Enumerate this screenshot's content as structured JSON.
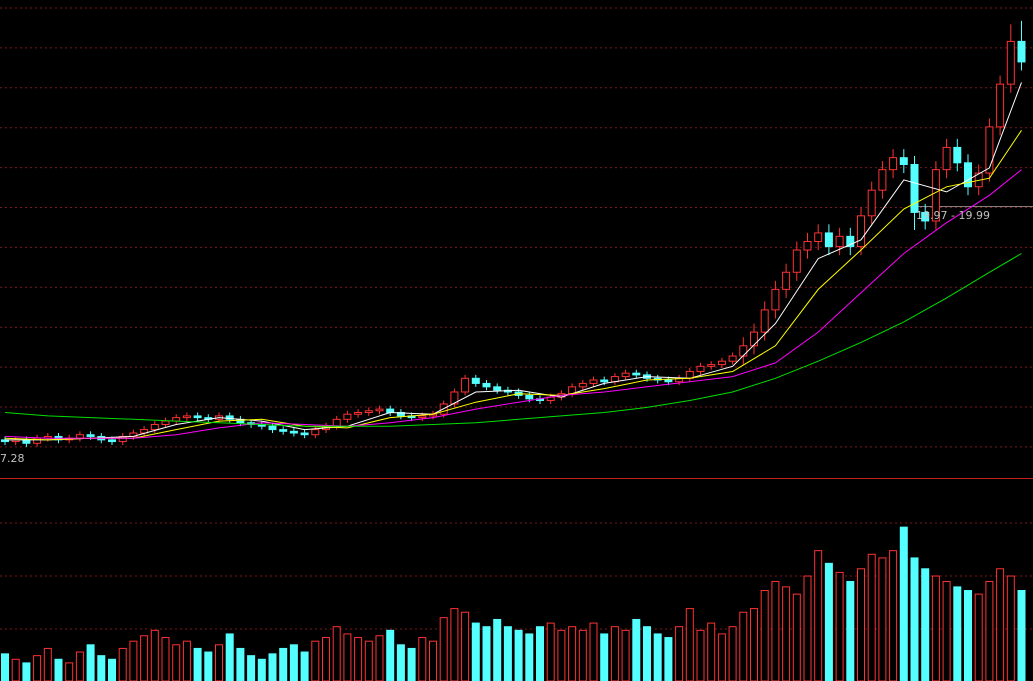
{
  "chart_data": {
    "type": "candlestick",
    "ylim": [
      5.47,
      33.42
    ],
    "vlim": [
      0,
      100
    ],
    "up_color": "#ff3232",
    "down_color": "#54ffff",
    "grid": true,
    "open": [
      7.7,
      7.6,
      7.7,
      7.5,
      7.8,
      7.9,
      7.7,
      7.8,
      8.0,
      7.9,
      7.7,
      7.6,
      7.9,
      8.1,
      8.3,
      8.6,
      8.8,
      9.0,
      9.1,
      9.0,
      8.9,
      9.1,
      8.9,
      8.7,
      8.6,
      8.5,
      8.3,
      8.2,
      8.1,
      8.0,
      8.3,
      8.5,
      8.9,
      9.2,
      9.3,
      9.4,
      9.5,
      9.3,
      9.1,
      9.0,
      9.1,
      9.2,
      9.8,
      10.5,
      11.3,
      11.0,
      10.8,
      10.6,
      10.5,
      10.3,
      10.1,
      10.0,
      10.2,
      10.4,
      10.8,
      11.0,
      11.2,
      11.1,
      11.4,
      11.6,
      11.5,
      11.3,
      11.2,
      11.1,
      11.3,
      11.7,
      12.0,
      12.1,
      12.3,
      12.6,
      13.2,
      14.0,
      15.3,
      16.5,
      17.5,
      18.8,
      19.3,
      19.8,
      19.0,
      19.6,
      19.0,
      20.8,
      22.3,
      23.5,
      24.2,
      23.8,
      21.0,
      20.5,
      23.5,
      24.8,
      23.9,
      22.5,
      23.3,
      26.0,
      28.5,
      31.0
    ],
    "high": [
      7.9,
      7.9,
      7.9,
      8.0,
      8.1,
      8.1,
      8.0,
      8.2,
      8.2,
      8.1,
      7.9,
      8.1,
      8.3,
      8.5,
      8.8,
      9.0,
      9.2,
      9.3,
      9.3,
      9.2,
      9.3,
      9.3,
      9.1,
      8.9,
      8.8,
      8.7,
      8.5,
      8.4,
      8.3,
      8.5,
      8.7,
      9.1,
      9.4,
      9.5,
      9.6,
      9.7,
      9.7,
      9.5,
      9.3,
      9.3,
      9.4,
      10.0,
      10.7,
      11.5,
      11.5,
      11.2,
      11.0,
      10.8,
      10.7,
      10.5,
      10.3,
      10.4,
      10.6,
      11.0,
      11.2,
      11.4,
      11.4,
      11.6,
      11.8,
      11.8,
      11.7,
      11.5,
      11.4,
      11.5,
      11.9,
      12.2,
      12.3,
      12.5,
      12.8,
      13.7,
      14.5,
      15.8,
      17.0,
      18.0,
      19.3,
      19.8,
      20.3,
      20.3,
      20.1,
      20.1,
      21.3,
      22.8,
      24.0,
      24.7,
      24.7,
      24.3,
      21.5,
      24.0,
      25.3,
      25.3,
      24.4,
      23.8,
      26.5,
      29.0,
      32.0,
      32.2
    ],
    "low": [
      7.4,
      7.4,
      7.28,
      7.3,
      7.6,
      7.5,
      7.5,
      7.6,
      7.7,
      7.5,
      7.4,
      7.4,
      7.7,
      7.9,
      8.1,
      8.4,
      8.6,
      8.8,
      8.8,
      8.7,
      8.7,
      8.7,
      8.5,
      8.4,
      8.3,
      8.1,
      8.0,
      7.9,
      7.8,
      7.8,
      8.1,
      8.3,
      8.7,
      9.0,
      9.1,
      9.2,
      9.1,
      8.9,
      8.8,
      8.8,
      8.9,
      9.0,
      9.6,
      10.3,
      10.8,
      10.6,
      10.4,
      10.3,
      10.1,
      9.9,
      9.8,
      9.8,
      10.0,
      10.2,
      10.6,
      10.8,
      10.9,
      10.9,
      11.2,
      11.3,
      11.1,
      11.0,
      10.9,
      10.9,
      11.1,
      11.5,
      11.8,
      11.9,
      12.1,
      12.1,
      12.7,
      13.5,
      14.8,
      16.0,
      17.0,
      18.3,
      18.8,
      18.5,
      18.5,
      18.5,
      18.5,
      20.3,
      21.8,
      23.0,
      23.3,
      19.97,
      20.0,
      20.0,
      23.0,
      23.4,
      22.0,
      22.0,
      22.8,
      25.5,
      28.0,
      29.3
    ],
    "close": [
      7.6,
      7.7,
      7.5,
      7.8,
      7.9,
      7.7,
      7.8,
      8.0,
      7.9,
      7.7,
      7.6,
      7.9,
      8.1,
      8.3,
      8.6,
      8.8,
      9.0,
      9.1,
      9.0,
      8.9,
      9.1,
      8.9,
      8.7,
      8.6,
      8.5,
      8.3,
      8.2,
      8.1,
      8.0,
      8.3,
      8.5,
      8.9,
      9.2,
      9.3,
      9.4,
      9.5,
      9.3,
      9.1,
      9.0,
      9.1,
      9.2,
      9.8,
      10.5,
      11.3,
      11.0,
      10.8,
      10.6,
      10.5,
      10.3,
      10.1,
      10.0,
      10.2,
      10.4,
      10.8,
      11.0,
      11.2,
      11.1,
      11.4,
      11.6,
      11.5,
      11.3,
      11.2,
      11.1,
      11.3,
      11.7,
      12.0,
      12.1,
      12.3,
      12.6,
      13.2,
      14.0,
      15.3,
      16.5,
      17.5,
      18.8,
      19.3,
      19.8,
      19.0,
      19.6,
      19.0,
      20.8,
      22.3,
      23.5,
      24.2,
      23.8,
      21.0,
      20.5,
      23.5,
      24.8,
      23.9,
      22.5,
      23.3,
      26.0,
      28.5,
      31.0,
      29.8
    ],
    "volume": [
      15,
      12,
      10,
      14,
      18,
      12,
      10,
      16,
      20,
      14,
      12,
      18,
      22,
      25,
      28,
      24,
      20,
      22,
      18,
      16,
      20,
      26,
      18,
      14,
      12,
      15,
      18,
      20,
      16,
      22,
      24,
      30,
      26,
      24,
      22,
      25,
      28,
      20,
      18,
      24,
      22,
      35,
      40,
      38,
      32,
      30,
      34,
      30,
      28,
      26,
      30,
      32,
      28,
      30,
      28,
      32,
      26,
      30,
      28,
      34,
      30,
      26,
      24,
      30,
      40,
      28,
      32,
      26,
      30,
      38,
      40,
      50,
      55,
      52,
      48,
      58,
      72,
      65,
      60,
      55,
      62,
      70,
      68,
      72,
      85,
      68,
      62,
      58,
      55,
      52,
      50,
      48,
      55,
      62,
      58,
      50
    ],
    "ma_x": [
      0,
      4,
      8,
      12,
      16,
      20,
      24,
      28,
      32,
      36,
      40,
      44,
      48,
      52,
      56,
      60,
      64,
      68,
      72,
      76,
      80,
      84,
      88,
      92,
      95
    ],
    "series": [
      {
        "color": "#ffffff",
        "values": [
          7.7,
          7.7,
          7.8,
          7.9,
          8.6,
          9.0,
          8.8,
          8.3,
          8.5,
          9.3,
          9.2,
          10.5,
          10.6,
          10.2,
          11.0,
          11.4,
          11.3,
          12.0,
          14.5,
          18.3,
          19.4,
          22.9,
          22.2,
          23.6,
          28.6
        ]
      },
      {
        "color": "#ffff00",
        "values": [
          7.8,
          7.7,
          7.8,
          7.8,
          8.3,
          8.8,
          8.9,
          8.5,
          8.4,
          9.0,
          9.2,
          9.9,
          10.4,
          10.3,
          10.7,
          11.2,
          11.3,
          11.7,
          13.2,
          16.5,
          18.8,
          21.2,
          22.5,
          23.0,
          25.8
        ]
      },
      {
        "color": "#ff00ff",
        "values": [
          7.9,
          7.8,
          7.8,
          7.8,
          8.0,
          8.4,
          8.7,
          8.6,
          8.5,
          8.7,
          9.0,
          9.5,
          9.9,
          10.3,
          10.5,
          10.8,
          11.1,
          11.4,
          12.2,
          14.0,
          16.3,
          18.6,
          20.4,
          22.0,
          23.5
        ]
      },
      {
        "color": "#00e000",
        "values": [
          9.3,
          9.1,
          9.0,
          8.9,
          8.8,
          8.7,
          8.6,
          8.5,
          8.5,
          8.5,
          8.6,
          8.7,
          8.9,
          9.1,
          9.3,
          9.6,
          10.0,
          10.5,
          11.3,
          12.3,
          13.4,
          14.6,
          16.0,
          17.5,
          18.6
        ]
      }
    ],
    "annotations": [
      "7.28",
      "19.97 - 19.99"
    ]
  }
}
